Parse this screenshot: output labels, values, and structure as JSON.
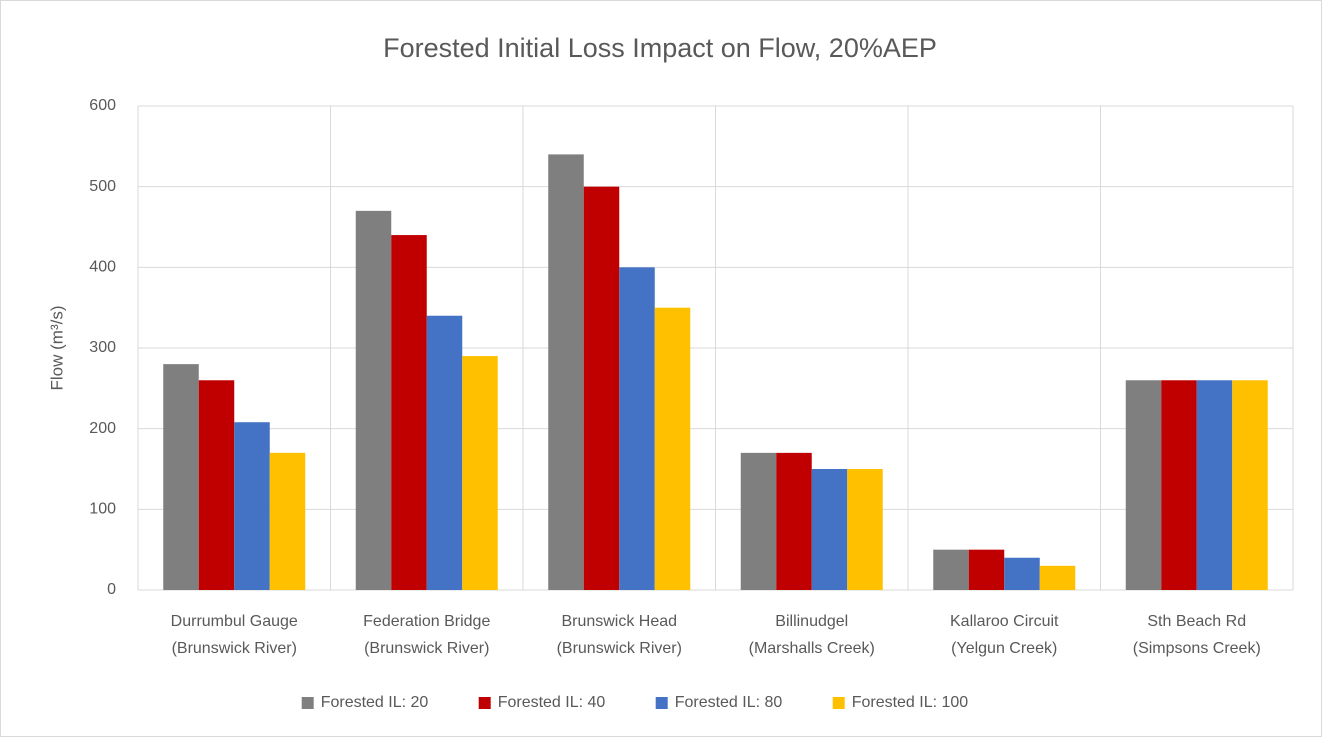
{
  "chart_data": {
    "type": "bar",
    "title": "Forested Initial Loss Impact on Flow, 20%AEP",
    "y_label": "Flow (m³/s)",
    "categories": [
      [
        "Durrumbul Gauge",
        "(Brunswick River)"
      ],
      [
        "Federation Bridge",
        "(Brunswick River)"
      ],
      [
        "Brunswick Head",
        "(Brunswick River)"
      ],
      [
        "Billinudgel",
        "(Marshalls Creek)"
      ],
      [
        "Kallaroo Circuit",
        "(Yelgun Creek)"
      ],
      [
        "Sth Beach Rd",
        "(Simpsons Creek)"
      ]
    ],
    "series": [
      {
        "name": "Forested IL: 20",
        "color": "#7f7f7f",
        "values": [
          280,
          470,
          540,
          170,
          50,
          260
        ]
      },
      {
        "name": "Forested IL: 40",
        "color": "#c00000",
        "values": [
          260,
          440,
          500,
          170,
          50,
          260
        ]
      },
      {
        "name": "Forested IL: 80",
        "color": "#4472c4",
        "values": [
          208,
          340,
          400,
          150,
          40,
          260
        ]
      },
      {
        "name": "Forested IL: 100",
        "color": "#ffc000",
        "values": [
          170,
          290,
          350,
          150,
          30,
          260
        ]
      }
    ],
    "ylim": [
      0,
      600
    ],
    "yticks": [
      0,
      100,
      200,
      300,
      400,
      500,
      600
    ],
    "grid": true,
    "legend": "bottom"
  }
}
